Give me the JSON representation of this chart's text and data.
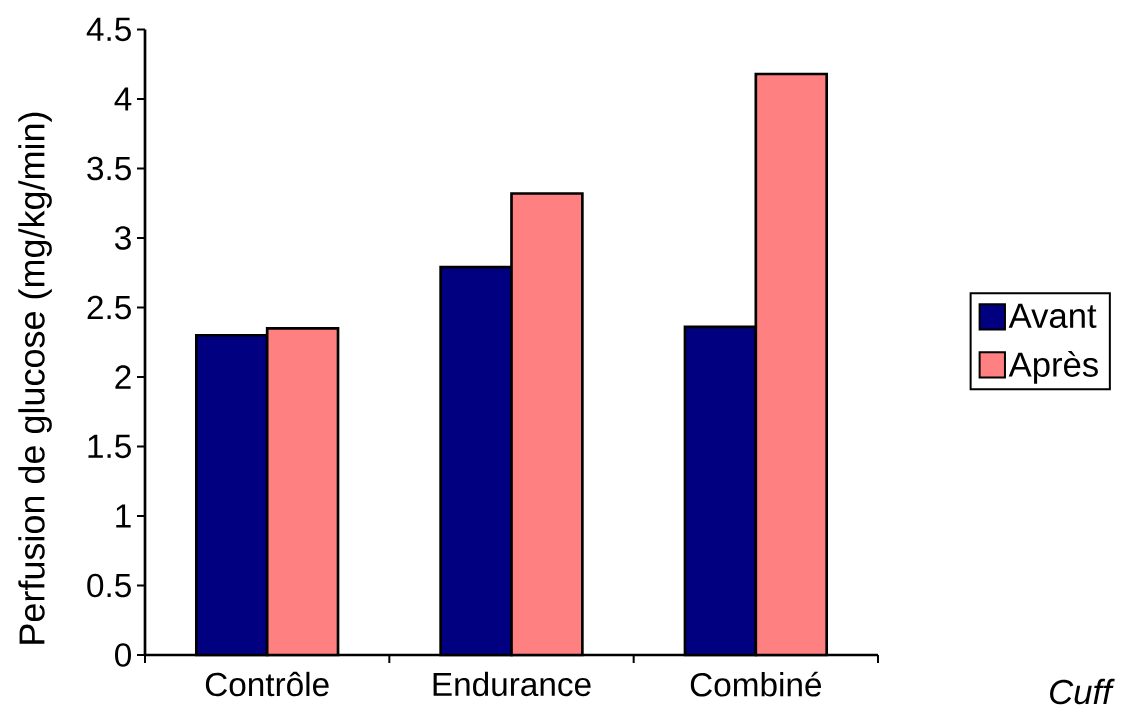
{
  "chart_data": {
    "type": "bar",
    "ylabel": "Perfusion de glucose (mg/kg/min)",
    "categories": [
      "Contrôle",
      "Endurance",
      "Combiné"
    ],
    "series": [
      {
        "name": "Avant",
        "color": "#000080",
        "values": [
          2.3,
          2.79,
          2.36
        ]
      },
      {
        "name": "Après",
        "color": "#ff8080",
        "values": [
          2.35,
          3.32,
          4.18
        ]
      }
    ],
    "ylim": [
      0,
      4.5
    ],
    "yticks": [
      0,
      0.5,
      1,
      1.5,
      2,
      2.5,
      3,
      3.5,
      4,
      4.5
    ],
    "legend": "right",
    "annotations": [
      "Cuff"
    ]
  }
}
